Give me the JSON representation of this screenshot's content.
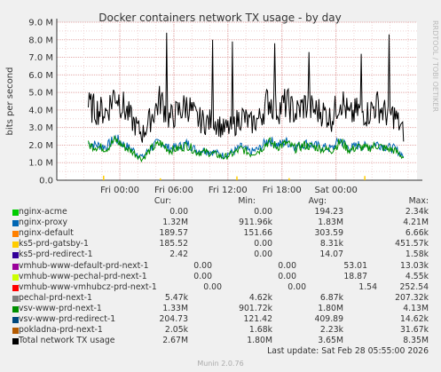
{
  "chart_data": {
    "type": "line",
    "title": "Docker containers network TX usage - by day",
    "ylabel": "bits per second",
    "ylim": [
      0,
      9000000
    ],
    "y_ticks": [
      "0.0",
      "1.0 M",
      "2.0 M",
      "3.0 M",
      "4.0 M",
      "5.0 M",
      "6.0 M",
      "7.0 M",
      "8.0 M",
      "9.0 M"
    ],
    "x_ticks": [
      "Fri 00:00",
      "Fri 06:00",
      "Fri 12:00",
      "Fri 18:00",
      "Sat 00:00"
    ],
    "x_range_hours": [
      -7,
      33
    ],
    "x_tick_hours": [
      0,
      6,
      12,
      18,
      24
    ],
    "side_text": "RRDTOOL / TOBI OETIKER",
    "series": [
      {
        "name": "Total network TX usage",
        "color": "#000000",
        "x_hours": [
          -3.5,
          -2.5,
          -1.5,
          -0.5,
          0.5,
          1.5,
          2.5,
          3.5,
          4.5,
          5.5,
          6.5,
          7.5,
          8.5,
          9.5,
          10.5,
          11.5,
          12.5,
          13.5,
          14.5,
          15.5,
          16.5,
          17.5,
          18.5,
          19.5,
          20.5,
          21.5,
          22.5,
          23.5,
          24.5,
          25.5,
          26.5,
          27.5,
          28.5,
          29.5,
          30.5,
          31.5
        ],
        "values": [
          4200000,
          4000000,
          3900000,
          5000000,
          4100000,
          3300000,
          2600000,
          3600000,
          4600000,
          3500000,
          3900000,
          4300000,
          3500000,
          3300000,
          3400000,
          2900000,
          3000000,
          3700000,
          3200000,
          3500000,
          4600000,
          4000000,
          4400000,
          3800000,
          4300000,
          4000000,
          3900000,
          3500000,
          4700000,
          3600000,
          4000000,
          3800000,
          4300000,
          3800000,
          3700000,
          2700000
        ],
        "peaks": [
          [
            5.2,
            8.4
          ],
          [
            10.3,
            8.0
          ],
          [
            12.5,
            7.9
          ],
          [
            17.2,
            7.8
          ],
          [
            21.0,
            7.3
          ],
          [
            26.8,
            7.2
          ],
          [
            29.9,
            8.3
          ]
        ]
      },
      {
        "name": "nginx-proxy",
        "color": "#0066b3",
        "x_hours": [
          -3.5,
          -2.5,
          -1.5,
          -0.5,
          0.5,
          1.5,
          2.5,
          3.5,
          4.5,
          5.5,
          6.5,
          7.5,
          8.5,
          9.5,
          10.5,
          11.5,
          12.5,
          13.5,
          14.5,
          15.5,
          16.5,
          17.5,
          18.5,
          19.5,
          20.5,
          21.5,
          22.5,
          23.5,
          24.5,
          25.5,
          26.5,
          27.5,
          28.5,
          29.5,
          30.5,
          31.5
        ],
        "values": [
          2100000,
          2000000,
          1900000,
          2400000,
          2000000,
          1700000,
          1300000,
          1900000,
          2200000,
          1800000,
          1900000,
          2100000,
          1700000,
          1700000,
          1600000,
          1400000,
          1600000,
          1900000,
          1600000,
          1800000,
          2300000,
          2000000,
          2200000,
          1900000,
          2100000,
          2000000,
          1900000,
          1800000,
          2300000,
          1800000,
          2000000,
          1900000,
          2100000,
          1900000,
          1800000,
          1400000
        ]
      },
      {
        "name": "vsv-www-prd-next-1",
        "color": "#008f00",
        "x_hours": [
          -3.5,
          -2.5,
          -1.5,
          -0.5,
          0.5,
          1.5,
          2.5,
          3.5,
          4.5,
          5.5,
          6.5,
          7.5,
          8.5,
          9.5,
          10.5,
          11.5,
          12.5,
          13.5,
          14.5,
          15.5,
          16.5,
          17.5,
          18.5,
          19.5,
          20.5,
          21.5,
          22.5,
          23.5,
          24.5,
          25.5,
          26.5,
          27.5,
          28.5,
          29.5,
          30.5,
          31.5
        ],
        "values": [
          2000000,
          1900000,
          1800000,
          2300000,
          1900000,
          1600000,
          1200000,
          1800000,
          2100000,
          1700000,
          1800000,
          2000000,
          1600000,
          1600000,
          1500000,
          1300000,
          1500000,
          1800000,
          1500000,
          1700000,
          2200000,
          1900000,
          2100000,
          1800000,
          2000000,
          1900000,
          1800000,
          1700000,
          2200000,
          1700000,
          1900000,
          1800000,
          2000000,
          1800000,
          1700000,
          1300000
        ]
      },
      {
        "name": "ks5-prd-gatsby-1",
        "color": "#ffcc00",
        "x_hours": [
          -1.8,
          4.5,
          13.0,
          18.8,
          27.2
        ],
        "values": [
          260000,
          110000,
          220000,
          120000,
          240000
        ]
      }
    ],
    "legend_headers": [
      "Cur:",
      "Min:",
      "Avg:",
      "Max:"
    ],
    "legend": [
      {
        "name": "nginx-acme",
        "color": "#00cc00",
        "cur": "0.00",
        "min": "0.00",
        "avg": "194.23",
        "max": "2.34k"
      },
      {
        "name": "nginx-proxy",
        "color": "#0066b3",
        "cur": "1.32M",
        "min": "911.96k",
        "avg": "1.83M",
        "max": "4.21M"
      },
      {
        "name": "nginx-default",
        "color": "#ff8000",
        "cur": "189.57",
        "min": "151.66",
        "avg": "303.59",
        "max": "6.66k"
      },
      {
        "name": "ks5-prd-gatsby-1",
        "color": "#ffcc00",
        "cur": "185.52",
        "min": "0.00",
        "avg": "8.31k",
        "max": "451.57k"
      },
      {
        "name": "ks5-prd-redirect-1",
        "color": "#330099",
        "cur": "2.42",
        "min": "0.00",
        "avg": "14.07",
        "max": "1.58k"
      },
      {
        "name": "vmhub-www-default-prd-next-1",
        "color": "#990099",
        "cur": "0.00",
        "min": "0.00",
        "avg": "53.01",
        "max": "13.03k"
      },
      {
        "name": "vmhub-www-pechal-prd-next-1",
        "color": "#ccff00",
        "cur": "0.00",
        "min": "0.00",
        "avg": "18.87",
        "max": "4.55k"
      },
      {
        "name": "vmhub-www-vmhubcz-prd-next-1",
        "color": "#ff0000",
        "cur": "0.00",
        "min": "0.00",
        "avg": "1.54",
        "max": "252.54"
      },
      {
        "name": "pechal-prd-next-1",
        "color": "#808080",
        "cur": "5.47k",
        "min": "4.62k",
        "avg": "6.87k",
        "max": "207.32k"
      },
      {
        "name": "vsv-www-prd-next-1",
        "color": "#008f00",
        "cur": "1.33M",
        "min": "901.72k",
        "avg": "1.80M",
        "max": "4.13M"
      },
      {
        "name": "vsv-www-prd-redirect-1",
        "color": "#00487d",
        "cur": "204.73",
        "min": "121.42",
        "avg": "409.89",
        "max": "14.62k"
      },
      {
        "name": "pokladna-prd-next-1",
        "color": "#b35a00",
        "cur": "2.05k",
        "min": "1.68k",
        "avg": "2.23k",
        "max": "31.67k"
      },
      {
        "name": "Total network TX usage",
        "color": "#000000",
        "cur": "2.67M",
        "min": "1.80M",
        "avg": "3.65M",
        "max": "8.35M"
      }
    ]
  },
  "footer": {
    "last_update": "Last update: Sat Feb 28 05:55:00 2026",
    "generator": "Munin 2.0.76"
  }
}
